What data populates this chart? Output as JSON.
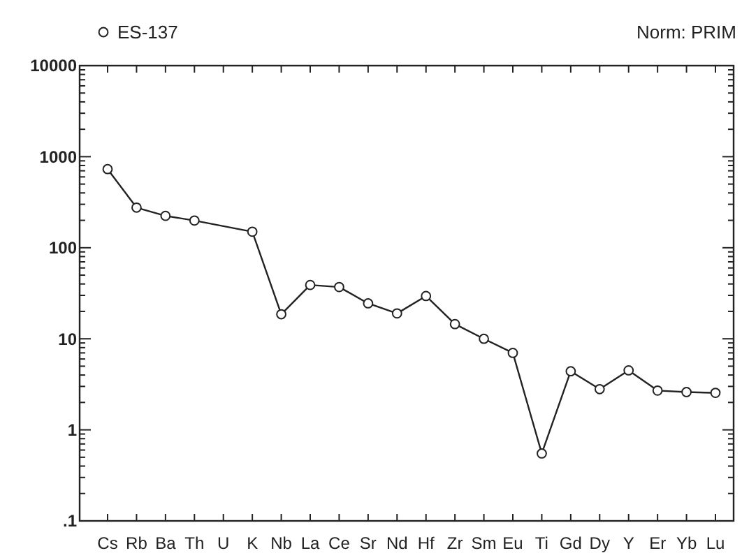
{
  "chart_data": {
    "type": "line",
    "categories": [
      "Cs",
      "Rb",
      "Ba",
      "Th",
      "U",
      "K",
      "Nb",
      "La",
      "Ce",
      "Sr",
      "Nd",
      "Hf",
      "Zr",
      "Sm",
      "Eu",
      "Ti",
      "Gd",
      "Dy",
      "Y",
      "Er",
      "Yb",
      "Lu"
    ],
    "series": [
      {
        "name": "ES-137",
        "color": "#222222",
        "values": [
          730,
          276,
          224,
          199,
          null,
          150,
          18.6,
          39,
          37,
          24.5,
          19,
          29.5,
          14.5,
          10,
          7,
          0.55,
          4.4,
          2.8,
          4.5,
          2.7,
          2.6,
          2.55
        ]
      }
    ],
    "ylim": [
      0.1,
      10000
    ],
    "yticks": [
      {
        "value": 0.1,
        "label": ".1"
      },
      1,
      10,
      100,
      1000,
      10000
    ],
    "log": true,
    "grid": false,
    "legend": "top left",
    "marker": "circle",
    "line_style": "solid",
    "annotations": [
      "Norm: PRIM"
    ]
  }
}
